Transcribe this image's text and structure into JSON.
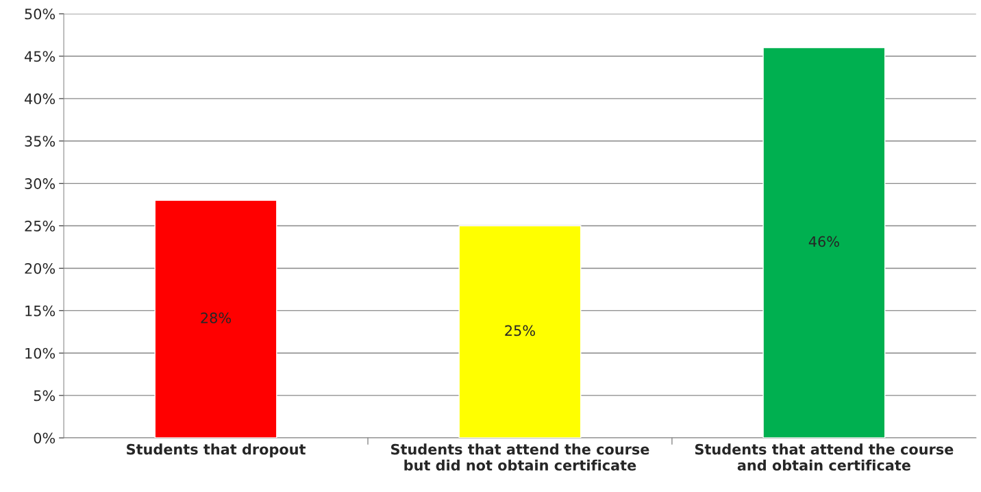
{
  "chart_data": {
    "type": "bar",
    "categories": [
      "Students that dropout",
      "Students that attend the course\nbut did not obtain certificate",
      "Students that attend the course\nand obtain certificate"
    ],
    "values": [
      28,
      25,
      46
    ],
    "colors": [
      "#ff0000",
      "#ffff00",
      "#00b050"
    ],
    "value_labels": [
      "28%",
      "25%",
      "46%"
    ],
    "ylim": [
      0,
      50
    ],
    "yticks": [
      {
        "value": 0,
        "label": "0%"
      },
      {
        "value": 5,
        "label": "5%"
      },
      {
        "value": 10,
        "label": "10%"
      },
      {
        "value": 15,
        "label": "15%"
      },
      {
        "value": 20,
        "label": "20%"
      },
      {
        "value": 25,
        "label": "25%"
      },
      {
        "value": 30,
        "label": "30%"
      },
      {
        "value": 35,
        "label": "35%"
      },
      {
        "value": 40,
        "label": "40%"
      },
      {
        "value": 45,
        "label": "45%"
      },
      {
        "value": 50,
        "label": "50%"
      }
    ],
    "grid": "y",
    "legend": false
  }
}
